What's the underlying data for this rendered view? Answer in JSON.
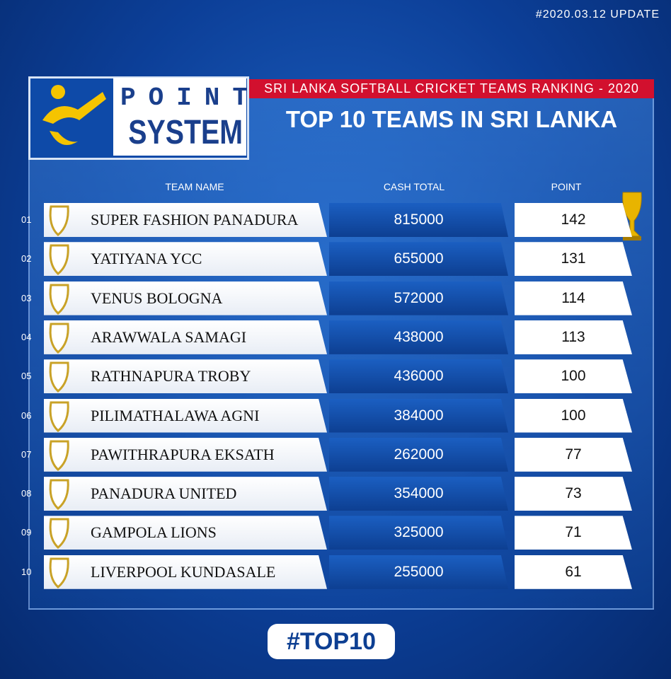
{
  "header": {
    "update": "#2020.03.12 UPDATE",
    "logo_top": "POINT",
    "logo_bottom": "SYSTEM",
    "subtitle": "SRI LANKA SOFTBALL CRICKET TEAMS RANKING - 2020",
    "title": "TOP 10 TEAMS IN SRI LANKA"
  },
  "table": {
    "columns": [
      "TEAM NAME",
      "CASH TOTAL",
      "POINT"
    ],
    "rows": [
      [
        "01",
        "SUPER FASHION PANADURA",
        815000,
        142
      ],
      [
        "02",
        "YATIYANA YCC",
        655000,
        131
      ],
      [
        "03",
        "VENUS BOLOGNA",
        572000,
        114
      ],
      [
        "04",
        "ARAWWALA SAMAGI",
        438000,
        113
      ],
      [
        "05",
        "RATHNAPURA TROBY",
        436000,
        100
      ],
      [
        "06",
        "PILIMATHALAWA AGNI",
        384000,
        100
      ],
      [
        "07",
        "PAWITHRAPURA EKSATH",
        262000,
        77
      ],
      [
        "08",
        "PANADURA UNITED",
        354000,
        73
      ],
      [
        "09",
        "GAMPOLA LIONS",
        325000,
        71
      ],
      [
        "10",
        "LIVERPOOL KUNDASALE",
        255000,
        61
      ]
    ]
  },
  "footer": {
    "tag": "#TOP10"
  }
}
